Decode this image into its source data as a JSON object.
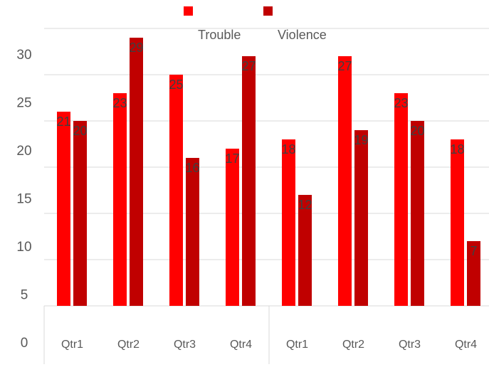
{
  "chart_data": {
    "type": "bar",
    "categories": [
      "Qtr1",
      "Qtr2",
      "Qtr3",
      "Qtr4",
      "Qtr1",
      "Qtr2",
      "Qtr3",
      "Qtr4"
    ],
    "series": [
      {
        "name": "Trouble",
        "color": "#ff0000",
        "values": [
          21,
          23,
          25,
          17,
          18,
          27,
          23,
          18
        ]
      },
      {
        "name": "Violence",
        "color": "#c00000",
        "values": [
          20,
          29,
          16,
          27,
          12,
          19,
          20,
          7
        ]
      }
    ],
    "ylim": [
      0,
      30
    ],
    "yticks": [
      0,
      5,
      10,
      15,
      20,
      25,
      30
    ],
    "grid": true,
    "legend": "top"
  }
}
